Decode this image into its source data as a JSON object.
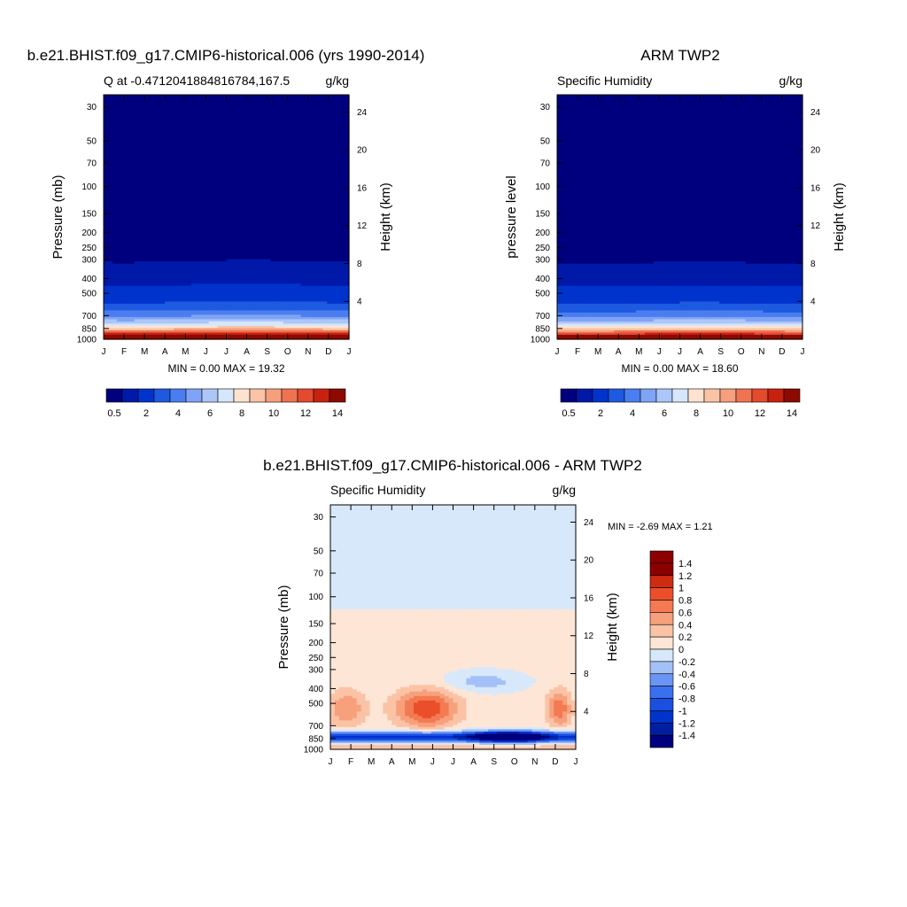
{
  "chart_data": [
    {
      "type": "heatmap",
      "title": "b.e21.BHIST.f09_g17.CMIP6-historical.006 (yrs 1990-2014)",
      "left_label": "Q at -0.4712041884816784,167.5",
      "units": "g/kg",
      "ylabel": "Pressure (mb)",
      "ylabel_right": "Height (km)",
      "x_ticks": [
        "J",
        "F",
        "M",
        "A",
        "M",
        "J",
        "J",
        "A",
        "S",
        "O",
        "N",
        "D",
        "J"
      ],
      "y_ticks": [
        30,
        50,
        70,
        100,
        150,
        200,
        250,
        300,
        400,
        500,
        700,
        850,
        1000
      ],
      "y_range": [
        1000,
        25
      ],
      "right_ticks": [
        24,
        20,
        16,
        12,
        8,
        4
      ],
      "min_max": "MIN =   0.00 MAX =  19.32",
      "min": 0.0,
      "max": 19.32,
      "colorbar": {
        "labels": [
          "0.5",
          "2",
          "4",
          "6",
          "8",
          "10",
          "12",
          "14"
        ]
      }
    },
    {
      "type": "heatmap",
      "title": "ARM TWP2",
      "left_label": "Specific Humidity",
      "units": "g/kg",
      "ylabel": "pressure level",
      "ylabel_right": "Height (km)",
      "x_ticks": [
        "J",
        "F",
        "M",
        "A",
        "M",
        "J",
        "J",
        "A",
        "S",
        "O",
        "N",
        "D",
        "J"
      ],
      "y_ticks": [
        30,
        50,
        70,
        100,
        150,
        200,
        250,
        300,
        400,
        500,
        700,
        850,
        1000
      ],
      "y_range": [
        1000,
        25
      ],
      "right_ticks": [
        24,
        20,
        16,
        12,
        8,
        4
      ],
      "min_max": "MIN =   0.00 MAX =  18.60",
      "min": 0.0,
      "max": 18.6,
      "colorbar": {
        "labels": [
          "0.5",
          "2",
          "4",
          "6",
          "8",
          "10",
          "12",
          "14"
        ]
      }
    },
    {
      "type": "heatmap",
      "title": "b.e21.BHIST.f09_g17.CMIP6-historical.006 - ARM TWP2",
      "left_label": "Specific Humidity",
      "units": "g/kg",
      "ylabel": "Pressure (mb)",
      "ylabel_right": "Height (km)",
      "x_ticks": [
        "J",
        "F",
        "M",
        "A",
        "M",
        "J",
        "J",
        "A",
        "S",
        "O",
        "N",
        "D",
        "J"
      ],
      "y_ticks": [
        30,
        50,
        70,
        100,
        150,
        200,
        250,
        300,
        400,
        500,
        700,
        850,
        1000
      ],
      "y_range": [
        1000,
        25
      ],
      "right_ticks": [
        24,
        20,
        16,
        12,
        8,
        4
      ],
      "min_max": "MIN =  -2.69 MAX =   1.21",
      "min": -2.69,
      "max": 1.21,
      "colorbar": {
        "labels": [
          "1.4",
          "1.2",
          "1",
          "0.8",
          "0.6",
          "0.4",
          "0.2",
          "0",
          "-0.2",
          "-0.4",
          "-0.6",
          "-0.8",
          "-1",
          "-1.2",
          "-1.4"
        ]
      }
    }
  ],
  "colors": {
    "abs_scale": [
      "#00007f",
      "#0019a8",
      "#0033cc",
      "#1e5ae0",
      "#4a7ef0",
      "#7fa3f5",
      "#adc6f8",
      "#d6e6fb",
      "#fde2cf",
      "#f9c3a6",
      "#f59f7c",
      "#ef7351",
      "#e44a2c",
      "#c8210f",
      "#8c0a00"
    ],
    "diff_scale": [
      "#00007f",
      "#001fa0",
      "#0033cc",
      "#1a4fe0",
      "#3a6fee",
      "#6b95f4",
      "#a3c0f7",
      "#d8e8fb",
      "#fde6d6",
      "#fbc3a6",
      "#f7a07c",
      "#f37a52",
      "#ea4f2a",
      "#cf2b10",
      "#8c0000"
    ]
  }
}
